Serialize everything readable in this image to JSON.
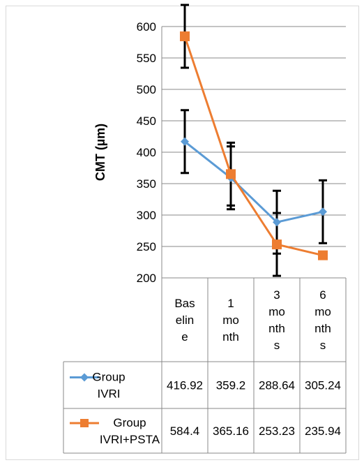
{
  "chart_data": {
    "type": "line",
    "ylabel": "CMT (µm)",
    "xlabel": "",
    "ylim": [
      200,
      600
    ],
    "yticks": [
      200,
      250,
      300,
      350,
      400,
      450,
      500,
      550,
      600
    ],
    "ytick_labels": [
      "200",
      "250",
      "300",
      "350",
      "400",
      "450",
      "500",
      "550",
      "600"
    ],
    "grid": true,
    "legend": "data-table",
    "categories": [
      "Baseline",
      "1 month",
      "3 months",
      "6 months"
    ],
    "category_label_lines": [
      [
        "Bas",
        "elin",
        "e"
      ],
      [
        "1",
        "mo",
        "nth"
      ],
      [
        "3",
        "mo",
        "nth",
        "s"
      ],
      [
        "6",
        "mo",
        "nth",
        "s"
      ]
    ],
    "series": [
      {
        "name": "Group IVRI",
        "name_lines": [
          "Group",
          "IVRI"
        ],
        "marker": "diamond",
        "color": "#5b9bd5",
        "values": [
          416.92,
          359.2,
          288.64,
          305.24
        ],
        "value_labels": [
          "416.92",
          "359.2",
          "288.64",
          "305.24"
        ],
        "errors": [
          50,
          50,
          50,
          50
        ]
      },
      {
        "name": "Group IVRI+PSTA",
        "name_lines": [
          "Group",
          "IVRI+PSTA"
        ],
        "marker": "square",
        "color": "#ed7d31",
        "values": [
          584.4,
          365.16,
          253.23,
          235.94
        ],
        "value_labels": [
          "584.4",
          "365.16",
          "253.23",
          "235.94"
        ],
        "errors": [
          50,
          50,
          50,
          0
        ]
      }
    ]
  }
}
